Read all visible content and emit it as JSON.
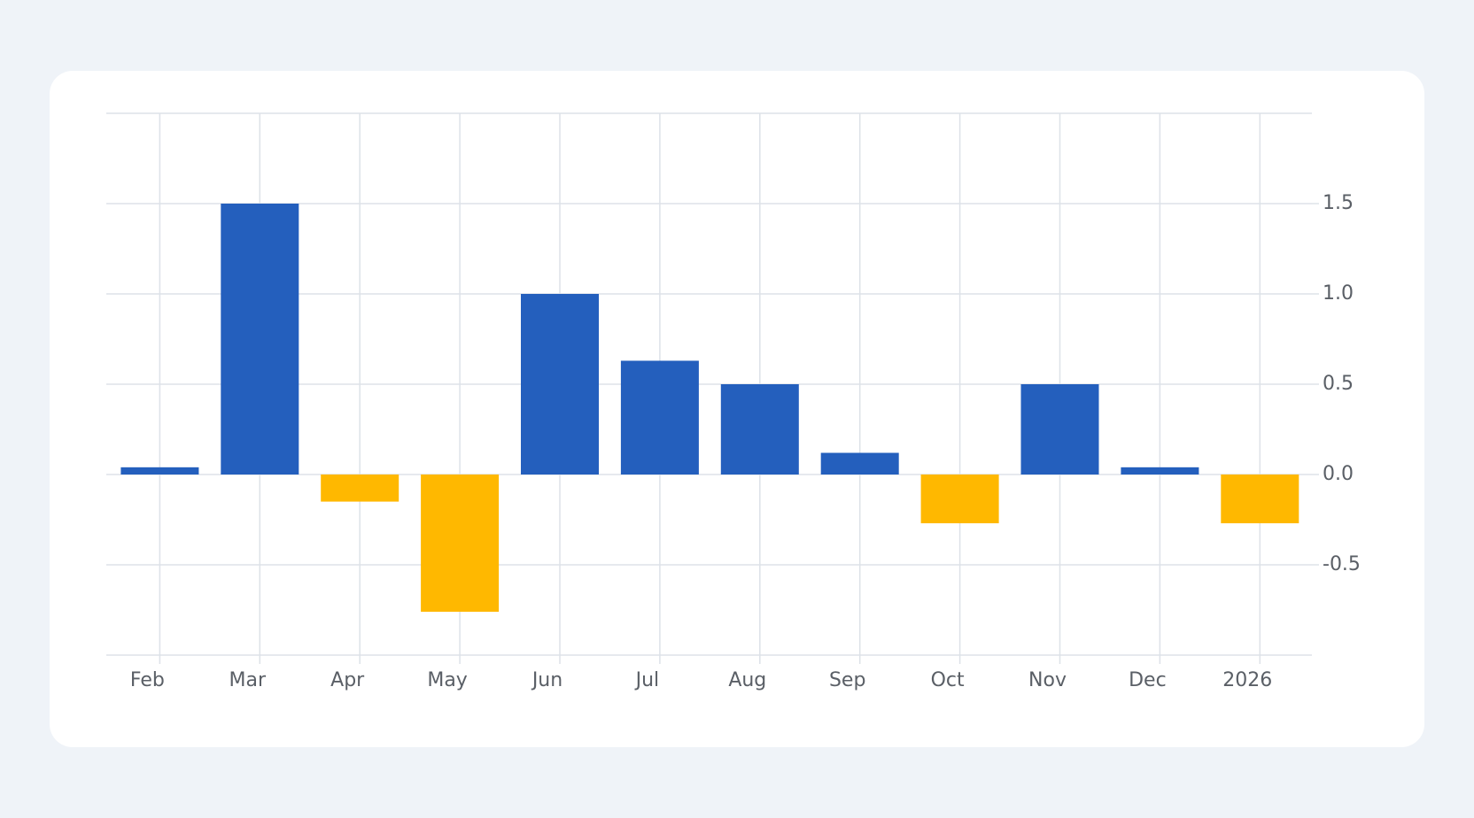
{
  "chart_data": {
    "type": "bar",
    "categories": [
      "Feb",
      "Mar",
      "Apr",
      "May",
      "Jun",
      "Jul",
      "Aug",
      "Sep",
      "Oct",
      "Nov",
      "Dec",
      "2026"
    ],
    "values": [
      0.04,
      1.5,
      -0.15,
      -0.76,
      1.0,
      0.63,
      0.5,
      0.12,
      -0.27,
      0.5,
      0.04,
      -0.27
    ],
    "positive_color": "#245fbd",
    "negative_color": "#ffb800",
    "ylim": [
      -1,
      2
    ],
    "yticks": [
      -0.5,
      {
        "value": 0,
        "label": "0.0"
      },
      0.5,
      {
        "value": 1,
        "label": "1.0"
      },
      1.5
    ],
    "y_axis_side": "right",
    "grid": true
  }
}
